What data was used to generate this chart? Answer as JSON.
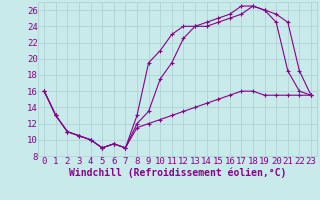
{
  "xlabel": "Windchill (Refroidissement éolien,°C)",
  "bg_color": "#c8eaea",
  "grid_color": "#b0d4d4",
  "line_color": "#880088",
  "xlim": [
    -0.5,
    23.5
  ],
  "ylim": [
    8,
    27
  ],
  "xticks": [
    0,
    1,
    2,
    3,
    4,
    5,
    6,
    7,
    8,
    9,
    10,
    11,
    12,
    13,
    14,
    15,
    16,
    17,
    18,
    19,
    20,
    21,
    22,
    23
  ],
  "yticks": [
    8,
    10,
    12,
    14,
    16,
    18,
    20,
    22,
    24,
    26
  ],
  "line1_x": [
    0,
    1,
    2,
    3,
    4,
    5,
    6,
    7,
    8,
    9,
    10,
    11,
    12,
    13,
    14,
    15,
    16,
    17,
    18,
    19,
    20,
    21,
    22,
    23
  ],
  "line1_y": [
    16.0,
    13.0,
    11.0,
    10.5,
    10.0,
    9.0,
    9.5,
    9.0,
    13.0,
    19.5,
    21.0,
    23.0,
    24.0,
    24.0,
    24.5,
    25.0,
    25.5,
    26.5,
    26.5,
    26.0,
    24.5,
    18.5,
    16.0,
    15.5
  ],
  "line2_x": [
    0,
    1,
    2,
    3,
    4,
    5,
    6,
    7,
    8,
    9,
    10,
    11,
    12,
    13,
    14,
    15,
    16,
    17,
    18,
    19,
    20,
    21,
    22,
    23
  ],
  "line2_y": [
    16.0,
    13.0,
    11.0,
    10.5,
    10.0,
    9.0,
    9.5,
    9.0,
    12.0,
    13.5,
    17.5,
    19.5,
    22.5,
    24.0,
    24.0,
    24.5,
    25.0,
    25.5,
    26.5,
    26.0,
    25.5,
    24.5,
    18.5,
    15.5
  ],
  "line3_x": [
    0,
    1,
    2,
    3,
    4,
    5,
    6,
    7,
    8,
    9,
    10,
    11,
    12,
    13,
    14,
    15,
    16,
    17,
    18,
    19,
    20,
    21,
    22,
    23
  ],
  "line3_y": [
    16.0,
    13.0,
    11.0,
    10.5,
    10.0,
    9.0,
    9.5,
    9.0,
    11.5,
    12.0,
    12.5,
    13.0,
    13.5,
    14.0,
    14.5,
    15.0,
    15.5,
    16.0,
    16.0,
    15.5,
    15.5,
    15.5,
    15.5,
    15.5
  ],
  "xlabel_fontsize": 7,
  "tick_fontsize": 6.5
}
